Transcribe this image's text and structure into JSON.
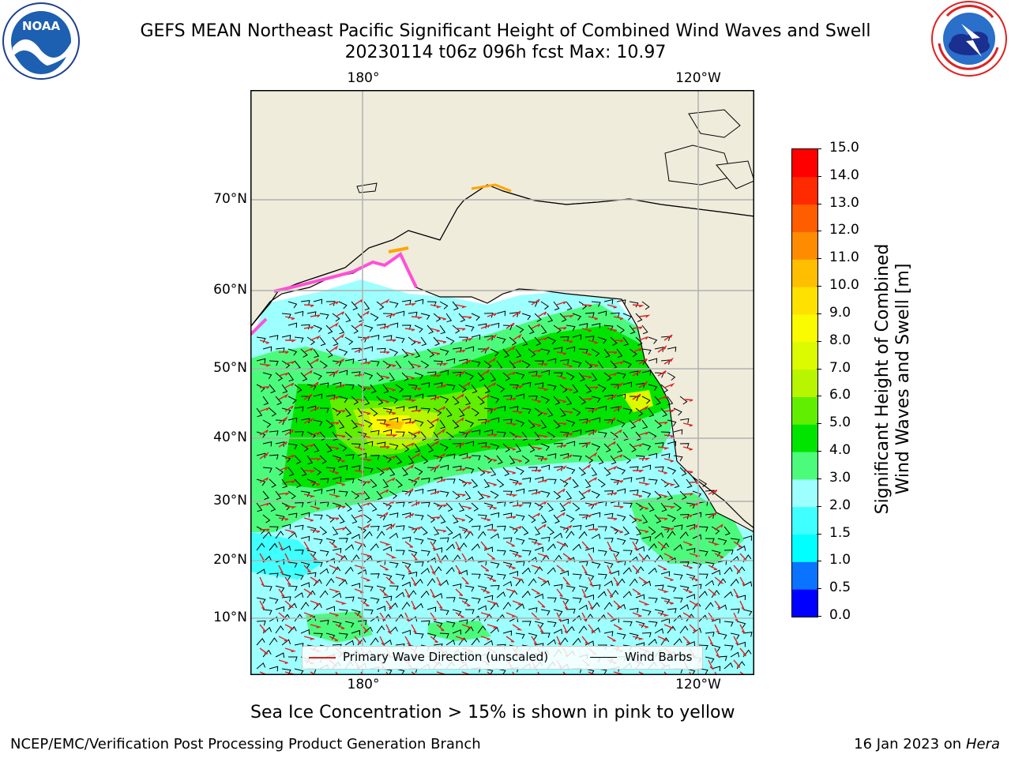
{
  "header": {
    "title_line1": "GEFS MEAN Northeast Pacific Significant Height of Combined Wind Waves and Swell",
    "title_line2": "20230114 t06z 096h fcst   Max: 10.97",
    "left_logo_text": "NOAA",
    "left_logo_ring_text": "NATIONAL OCEANIC AND ATMOSPHERIC ADMINISTRATION · U.S. DEPARTMENT OF COMMERCE",
    "right_logo_ring_text": "NATIONAL WEATHER SERVICE"
  },
  "map": {
    "lon_top": [
      "180°",
      "120°W"
    ],
    "lon_bottom": [
      "180°",
      "120°W"
    ],
    "lat_labels": [
      "70°N",
      "60°N",
      "50°N",
      "40°N",
      "30°N",
      "20°N",
      "10°N"
    ],
    "land_color": "#efecdc",
    "ocean_base_color": "#9effff",
    "legend": {
      "wave_label": "Primary Wave Direction (unscaled)",
      "wind_label": "Wind Barbs",
      "wave_color": "#e02020",
      "wind_color": "#000000"
    }
  },
  "colorbar": {
    "title_line1": "Significant Height of Combined",
    "title_line2": "Wind Waves and Swell [m]",
    "ticks": [
      "0.0",
      "0.5",
      "1.0",
      "1.5",
      "2.0",
      "3.0",
      "4.0",
      "5.0",
      "6.0",
      "7.0",
      "8.0",
      "9.0",
      "10.0",
      "11.0",
      "12.0",
      "13.0",
      "14.0",
      "15.0"
    ],
    "colors": [
      "#0000ff",
      "#0a73ff",
      "#00ffff",
      "#40ffff",
      "#9effff",
      "#4cfb7c",
      "#00e400",
      "#61ee00",
      "#b8f500",
      "#dcfa00",
      "#fafa00",
      "#ffe100",
      "#ffbe00",
      "#ff8c00",
      "#ff5e00",
      "#ff2a00",
      "#ff0000"
    ]
  },
  "note": "Sea Ice Concentration > 15% is shown in pink to yellow",
  "footer": {
    "left": "NCEP/EMC/Verification Post Processing Product Generation Branch",
    "right_prefix": "16 Jan 2023 on ",
    "right_host": "Hera"
  }
}
